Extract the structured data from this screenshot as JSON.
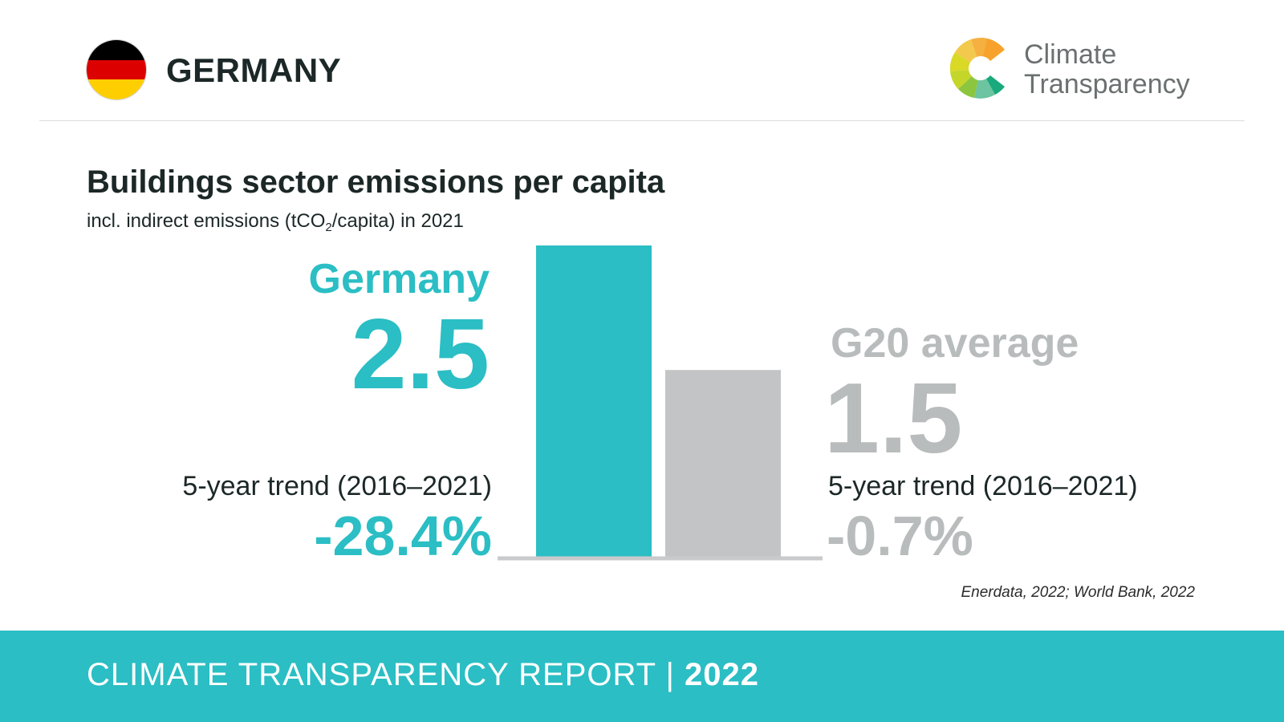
{
  "header": {
    "country": "GERMANY",
    "logo_line1": "Climate",
    "logo_line2": "Transparency"
  },
  "flag_colors": [
    "#000000",
    "#dd0000",
    "#ffce00"
  ],
  "title": "Buildings sector emissions per capita",
  "subtitle": {
    "before": "incl. indirect emissions (tCO",
    "sub": "2",
    "after": "/capita) in 2021"
  },
  "germany": {
    "label": "Germany",
    "value": "2.5",
    "trend_label": "5-year trend (2016–2021)",
    "trend_value": "-28.4%"
  },
  "g20": {
    "label": "G20 average",
    "value": "1.5",
    "trend_label": "5-year trend (2016–2021)",
    "trend_value": "-0.7%"
  },
  "chart_data": {
    "type": "bar",
    "categories": [
      "Germany",
      "G20 average"
    ],
    "values": [
      2.5,
      1.5
    ],
    "colors": [
      "#2bbec4",
      "#c2c4c5"
    ],
    "title": "Buildings sector emissions per capita",
    "ylabel": "tCO2/capita",
    "ylim": [
      0,
      2.5
    ],
    "grid": false
  },
  "source": "Enerdata, 2022; World Bank, 2022",
  "footer": {
    "text": "CLIMATE TRANSPARENCY REPORT | ",
    "year": "2022"
  },
  "colors": {
    "accent": "#2bbec4",
    "grey": "#b9bcbc",
    "baseline": "#c8cacb"
  }
}
